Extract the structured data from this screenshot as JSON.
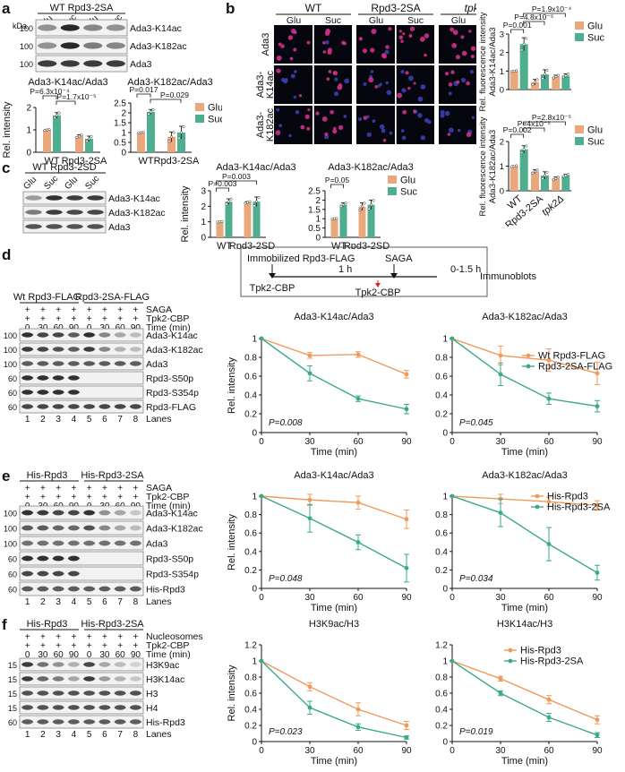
{
  "colors": {
    "glu": "#e8a87c",
    "suc": "#4fae8f",
    "wt": "#ef9a5a",
    "mut": "#3aa88a",
    "blot": "#1c1c1c",
    "micro_bg": "#06060e"
  },
  "panels": {
    "a": {
      "letter": "a",
      "strain_labels": [
        "WT",
        "Rpd3-2SA"
      ],
      "lane_labels": [
        "Glu",
        "Suc",
        "Glu",
        "Suc"
      ],
      "kda_title": "kDa",
      "kda": [
        "100",
        "100",
        "100"
      ],
      "bands": [
        "Ada3-K14ac",
        "Ada3-K182ac",
        "Ada3"
      ],
      "charts": [
        {
          "title": "Ada3-K14ac/Ada3",
          "pvals": [
            "P=6.3x10⁻⁴",
            "P=1.7x10⁻⁵"
          ]
        },
        {
          "title": "Ada3-K182ac/Ada3",
          "pvals": [
            "P=0.017",
            "P=0.029"
          ]
        }
      ],
      "legend": [
        "Glu",
        "Suc"
      ]
    },
    "b": {
      "letter": "b",
      "col_groups": [
        "WT",
        "Rpd3-2SA",
        "tpk2Δ"
      ],
      "sub_cols": [
        "Glu",
        "Suc",
        "Glu",
        "Suc",
        "Glu",
        "Suc"
      ],
      "row_labels": [
        "Ada3",
        "Ada3-K14ac",
        "Ada3-K182ac"
      ],
      "scale": "5μm",
      "chart_top": {
        "ylabel_lines": [
          "Rel. fluorescence intensity",
          "Ada3-K14ac/Ada3"
        ],
        "pvals": [
          "P=1.9x10⁻⁴",
          "P=4.8x10⁻⁵",
          "P=0.001"
        ]
      },
      "chart_bottom": {
        "ylabel_lines": [
          "Rel. fluorescence intensity",
          "Ada3-K182ac/Ada3"
        ],
        "pvals": [
          "P=2.8x10⁻⁵",
          "P=4x10⁻⁵",
          "P=0.002"
        ]
      },
      "legend": [
        "Glu",
        "Suc"
      ]
    },
    "c": {
      "letter": "c",
      "strain_labels": [
        "WT",
        "Rpd3-2SD"
      ],
      "lane_labels": [
        "Glu",
        "Suc",
        "Glu",
        "Suc"
      ],
      "bands": [
        "Ada3-K14ac",
        "Ada3-K182ac",
        "Ada3"
      ],
      "charts": [
        {
          "title": "Ada3-K14ac/Ada3",
          "pvals": [
            "P=0.003",
            "P=0.003"
          ]
        },
        {
          "title": "Ada3-K182ac/Ada3",
          "pvals": [
            "P=0.05"
          ]
        }
      ],
      "legend": [
        "Glu",
        "Suc"
      ]
    },
    "d": {
      "letter": "d",
      "strain_labels": [
        "Wt Rpd3-FLAG",
        "Rpd3-2SA-FLAG"
      ],
      "condition_labels": [
        "SAGA",
        "Tpk2-CBP",
        "Time (min)"
      ],
      "times": [
        "0",
        "30",
        "60",
        "90",
        "0",
        "30",
        "60",
        "90"
      ],
      "kda": [
        "100",
        "100",
        "100",
        "60",
        "60",
        "60"
      ],
      "bands": [
        "Ada3-K14ac",
        "Ada3-K182ac",
        "Ada3",
        "Rpd3-S50p",
        "Rpd3-S354p",
        "Rpd3-FLAG"
      ],
      "lanes_label": "Lanes",
      "lanes": [
        "1",
        "2",
        "3",
        "4",
        "5",
        "6",
        "7",
        "8"
      ],
      "scheme": {
        "box": "Immobilized Rpd3-FLAG",
        "tpk": "Tpk2-CBP",
        "saga": "SAGA",
        "dur1": "1 h",
        "dur2": "0-1.5 h",
        "immuno": "Immunoblots"
      },
      "legend": [
        "Wt Rpd3-FLAG",
        "Rpd3-2SA-FLAG"
      ],
      "charts": [
        {
          "title": "Ada3-K14ac/Ada3",
          "p": "P=0.008"
        },
        {
          "title": "Ada3-K182ac/Ada3",
          "p": "P=0.045"
        }
      ]
    },
    "e": {
      "letter": "e",
      "strain_labels": [
        "His-Rpd3",
        "His-Rpd3-2SA"
      ],
      "condition_labels": [
        "SAGA",
        "Tpk2-CBP",
        "Time (min)"
      ],
      "times": [
        "0",
        "30",
        "60",
        "90",
        "0",
        "30",
        "60",
        "90"
      ],
      "kda": [
        "100",
        "100",
        "100",
        "60",
        "60",
        "60"
      ],
      "bands": [
        "Ada3-K14ac",
        "Ada3-K182ac",
        "Ada3",
        "Rpd3-S50p",
        "Rpd3-S354p",
        "His-Rpd3"
      ],
      "lanes_label": "Lanes",
      "lanes": [
        "1",
        "2",
        "3",
        "4",
        "5",
        "6",
        "7",
        "8"
      ],
      "legend": [
        "His-Rpd3",
        "His-Rpd3-2SA"
      ],
      "charts": [
        {
          "title": "Ada3-K14ac/Ada3",
          "p": "P=0.048"
        },
        {
          "title": "Ada3-K182ac/Ada3",
          "p": "P=0.034"
        }
      ]
    },
    "f": {
      "letter": "f",
      "strain_labels": [
        "His-Rpd3",
        "His-Rpd3-2SA"
      ],
      "condition_labels": [
        "Nucleosomes",
        "Tpk2-CBP",
        "Time (min)"
      ],
      "times": [
        "0",
        "30",
        "60",
        "90",
        "0",
        "30",
        "60",
        "90"
      ],
      "kda": [
        "15",
        "15",
        "15",
        "15",
        "60"
      ],
      "bands": [
        "H3K9ac",
        "H3K14ac",
        "H3",
        "H4",
        "His-Rpd3"
      ],
      "lanes_label": "Lanes",
      "lanes": [
        "1",
        "2",
        "3",
        "4",
        "5",
        "6",
        "7",
        "8"
      ],
      "legend": [
        "His-Rpd3",
        "His-Rpd3-2SA"
      ],
      "charts": [
        {
          "title": "H3K9ac/H3",
          "p": "P=0.023"
        },
        {
          "title": "H3K14ac/H3",
          "p": "P=0.019"
        }
      ]
    }
  },
  "chart_data": [
    {
      "type": "bar",
      "panel": "a",
      "title": "Ada3-K14ac/Ada3",
      "categories": [
        "WT",
        "Rpd3-2SA"
      ],
      "ylabel": "Rel. intensity",
      "ylim": [
        0,
        2
      ],
      "yticks": [
        0,
        1,
        2
      ],
      "series": [
        {
          "name": "Glu",
          "values": [
            1.0,
            0.72
          ],
          "err": [
            0.02,
            0.06
          ]
        },
        {
          "name": "Suc",
          "values": [
            1.65,
            0.6
          ],
          "err": [
            0.12,
            0.12
          ]
        }
      ]
    },
    {
      "type": "bar",
      "panel": "a",
      "title": "Ada3-K182ac/Ada3",
      "categories": [
        "WT",
        "Rpd3-2SA"
      ],
      "ylim": [
        0,
        2.5
      ],
      "yticks": [
        0,
        0.5,
        1,
        1.5,
        2,
        2.5
      ],
      "series": [
        {
          "name": "Glu",
          "values": [
            1.0,
            0.78
          ],
          "err": [
            0.02,
            0.25
          ]
        },
        {
          "name": "Suc",
          "values": [
            2.05,
            1.0
          ],
          "err": [
            0.12,
            0.32
          ]
        }
      ]
    },
    {
      "type": "bar",
      "panel": "b",
      "title": "Ada3-K14ac/Ada3",
      "categories": [
        "WT",
        "Rpd3-2SA",
        "tpk2Δ"
      ],
      "ylim": [
        0,
        3
      ],
      "yticks": [
        0,
        1,
        2,
        3
      ],
      "series": [
        {
          "name": "Glu",
          "values": [
            1.0,
            0.4,
            0.7
          ],
          "err": [
            0.02,
            0.15,
            0.08
          ]
        },
        {
          "name": "Suc",
          "values": [
            2.45,
            0.82,
            0.75
          ],
          "err": [
            0.35,
            0.25,
            0.1
          ]
        }
      ]
    },
    {
      "type": "bar",
      "panel": "b",
      "title": "Ada3-K182ac/Ada3",
      "categories": [
        "WT",
        "Rpd3-2SA",
        "tpk2Δ"
      ],
      "ylim": [
        0,
        2
      ],
      "yticks": [
        0,
        1,
        2
      ],
      "series": [
        {
          "name": "Glu",
          "values": [
            1.0,
            0.78,
            0.5
          ],
          "err": [
            0.02,
            0.07,
            0.06
          ]
        },
        {
          "name": "Suc",
          "values": [
            1.68,
            0.62,
            0.62
          ],
          "err": [
            0.15,
            0.15,
            0.05
          ]
        }
      ]
    },
    {
      "type": "bar",
      "panel": "c",
      "title": "Ada3-K14ac/Ada3",
      "categories": [
        "WT",
        "Rpd3-2SD"
      ],
      "ylabel": "Rel. intensity",
      "ylim": [
        0,
        3
      ],
      "yticks": [
        0,
        1,
        2,
        3
      ],
      "series": [
        {
          "name": "Glu",
          "values": [
            1.0,
            2.25
          ],
          "err": [
            0.02,
            0.05
          ]
        },
        {
          "name": "Suc",
          "values": [
            2.3,
            2.3
          ],
          "err": [
            0.18,
            0.3
          ]
        }
      ]
    },
    {
      "type": "bar",
      "panel": "c",
      "title": "Ada3-K182ac/Ada3",
      "categories": [
        "WT",
        "Rpd3-2SD"
      ],
      "ylim": [
        0,
        2.5
      ],
      "yticks": [
        0,
        0.5,
        1,
        1.5,
        2,
        2.5
      ],
      "series": [
        {
          "name": "Glu",
          "values": [
            1.0,
            1.65
          ],
          "err": [
            0.02,
            0.2
          ]
        },
        {
          "name": "Suc",
          "values": [
            1.75,
            1.75
          ],
          "err": [
            0.1,
            0.25
          ]
        }
      ]
    },
    {
      "type": "line",
      "panel": "d",
      "title": "Ada3-K14ac/Ada3",
      "x": [
        0,
        30,
        60,
        90
      ],
      "xlabel": "Time (min)",
      "ylabel": "Rel. intensity",
      "ylim": [
        0,
        1
      ],
      "yticks": [
        0,
        0.2,
        0.4,
        0.6,
        0.8,
        1
      ],
      "series": [
        {
          "name": "Wt Rpd3-FLAG",
          "values": [
            1.0,
            0.82,
            0.83,
            0.62
          ],
          "err": [
            0,
            0.03,
            0.03,
            0.04
          ]
        },
        {
          "name": "Rpd3-2SA-FLAG",
          "values": [
            1.0,
            0.63,
            0.36,
            0.25
          ],
          "err": [
            0,
            0.08,
            0.03,
            0.05
          ]
        }
      ]
    },
    {
      "type": "line",
      "panel": "d",
      "title": "Ada3-K182ac/Ada3",
      "x": [
        0,
        30,
        60,
        90
      ],
      "xlabel": "Time (min)",
      "ylim": [
        0,
        1
      ],
      "yticks": [
        0,
        0.2,
        0.4,
        0.6,
        0.8,
        1
      ],
      "series": [
        {
          "name": "Wt Rpd3-FLAG",
          "values": [
            1.0,
            0.82,
            0.77,
            0.63
          ],
          "err": [
            0,
            0.1,
            0.12,
            0.12
          ]
        },
        {
          "name": "Rpd3-2SA-FLAG",
          "values": [
            1.0,
            0.62,
            0.36,
            0.28
          ],
          "err": [
            0,
            0.12,
            0.06,
            0.06
          ]
        }
      ]
    },
    {
      "type": "line",
      "panel": "e",
      "title": "Ada3-K14ac/Ada3",
      "x": [
        0,
        30,
        60,
        90
      ],
      "xlabel": "Time (min)",
      "ylabel": "Rel. intensity",
      "ylim": [
        0,
        1
      ],
      "yticks": [
        0,
        0.2,
        0.4,
        0.6,
        0.8,
        1
      ],
      "series": [
        {
          "name": "His-Rpd3",
          "values": [
            1.0,
            0.96,
            0.93,
            0.75
          ],
          "err": [
            0,
            0.06,
            0.07,
            0.1
          ]
        },
        {
          "name": "His-Rpd3-2SA",
          "values": [
            1.0,
            0.76,
            0.5,
            0.22
          ],
          "err": [
            0,
            0.15,
            0.08,
            0.15
          ]
        }
      ]
    },
    {
      "type": "line",
      "panel": "e",
      "title": "Ada3-K182ac/Ada3",
      "x": [
        0,
        30,
        60,
        90
      ],
      "xlabel": "Time (min)",
      "ylim": [
        0,
        1
      ],
      "yticks": [
        0,
        0.2,
        0.4,
        0.6,
        0.8,
        1
      ],
      "series": [
        {
          "name": "His-Rpd3",
          "values": [
            1.0,
            0.97,
            0.94,
            0.9
          ],
          "err": [
            0,
            0.05,
            0.05,
            0.05
          ]
        },
        {
          "name": "His-Rpd3-2SA",
          "values": [
            1.0,
            0.82,
            0.48,
            0.17
          ],
          "err": [
            0,
            0.15,
            0.18,
            0.08
          ]
        }
      ]
    },
    {
      "type": "line",
      "panel": "f",
      "title": "H3K9ac/H3",
      "x": [
        0,
        30,
        60,
        90
      ],
      "xlabel": "Time (min)",
      "ylabel": "Rel. intensity",
      "ylim": [
        0,
        1.2
      ],
      "yticks": [
        0,
        0.2,
        0.4,
        0.6,
        0.8,
        1,
        1.2
      ],
      "series": [
        {
          "name": "His-Rpd3",
          "values": [
            1.0,
            0.68,
            0.4,
            0.2
          ],
          "err": [
            0,
            0.05,
            0.08,
            0.05
          ]
        },
        {
          "name": "His-Rpd3-2SA",
          "values": [
            1.0,
            0.42,
            0.18,
            0.05
          ],
          "err": [
            0,
            0.08,
            0.04,
            0.02
          ]
        }
      ]
    },
    {
      "type": "line",
      "panel": "f",
      "title": "H3K14ac/H3",
      "x": [
        0,
        30,
        60,
        90
      ],
      "xlabel": "Time (min)",
      "ylim": [
        0,
        1.2
      ],
      "yticks": [
        0,
        0.2,
        0.4,
        0.6,
        0.8,
        1,
        1.2
      ],
      "series": [
        {
          "name": "His-Rpd3",
          "values": [
            1.0,
            0.78,
            0.52,
            0.27
          ],
          "err": [
            0,
            0.03,
            0.05,
            0.05
          ]
        },
        {
          "name": "His-Rpd3-2SA",
          "values": [
            1.0,
            0.6,
            0.3,
            0.08
          ],
          "err": [
            0,
            0.03,
            0.05,
            0.03
          ]
        }
      ]
    }
  ]
}
